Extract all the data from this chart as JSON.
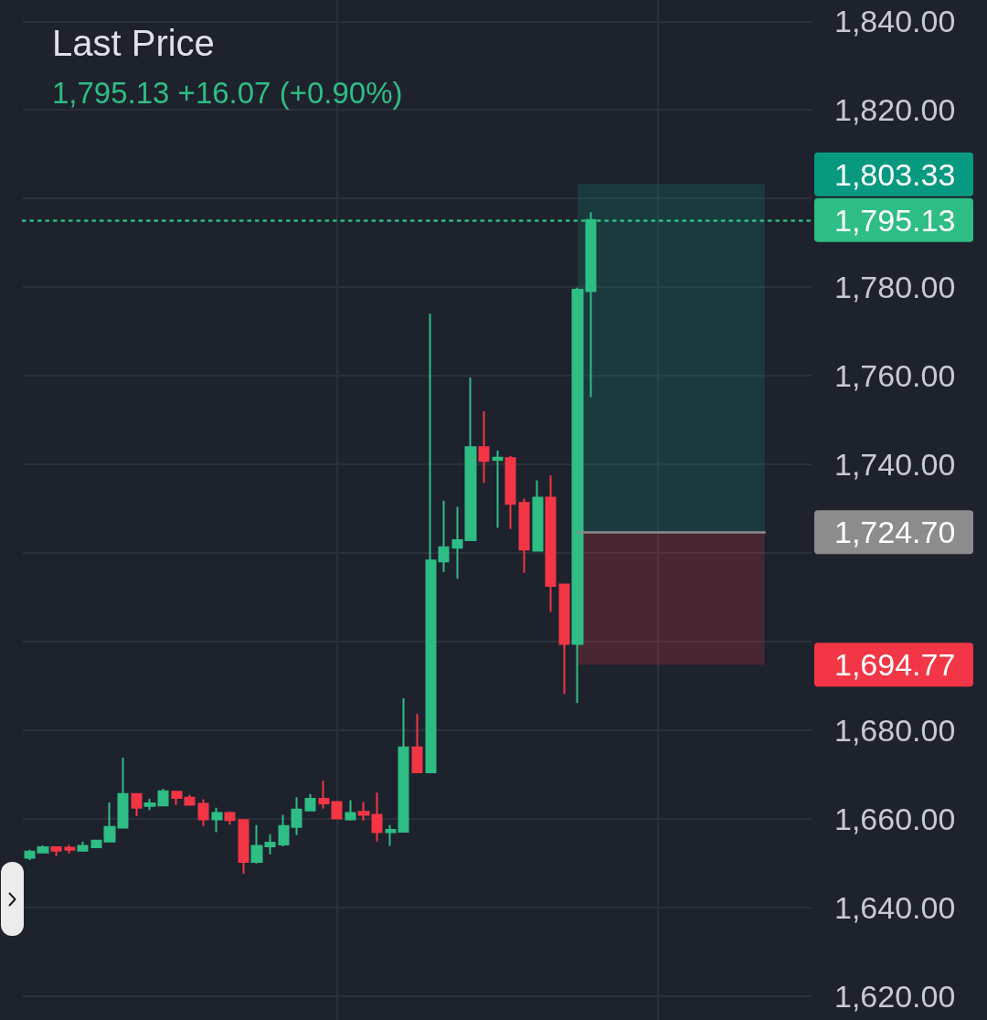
{
  "chart_data": {
    "type": "candlestick",
    "title": "Last Price",
    "subtitle": "1,795.13 +16.07 (+0.90%)",
    "categories": [
      null,
      null,
      null,
      null,
      null,
      null,
      null,
      null,
      null,
      null,
      null,
      null,
      null,
      null,
      null,
      null,
      null,
      null,
      null,
      null,
      null,
      null,
      null,
      null,
      null,
      null,
      null,
      null,
      null,
      null,
      null,
      null,
      null,
      null,
      null,
      null,
      null,
      null,
      null,
      null,
      null,
      null,
      null,
      null,
      null,
      null,
      null,
      null,
      null,
      null,
      null,
      null,
      null,
      null,
      null,
      null,
      null,
      null,
      null
    ],
    "ohlc": [
      [
        1651.2,
        1653.0,
        1650.7,
        1652.6
      ],
      [
        1652.4,
        1654.0,
        1652.3,
        1653.6
      ],
      [
        1653.6,
        1653.7,
        1651.6,
        1652.8
      ],
      [
        1653.5,
        1654.1,
        1652.2,
        1653.0
      ],
      [
        1652.8,
        1654.8,
        1652.7,
        1653.9
      ],
      [
        1653.6,
        1655.3,
        1653.4,
        1655.1
      ],
      [
        1654.9,
        1663.7,
        1654.8,
        1658.2
      ],
      [
        1658.0,
        1673.8,
        1657.9,
        1665.6
      ],
      [
        1665.6,
        1665.8,
        1660.6,
        1662.5
      ],
      [
        1662.9,
        1664.5,
        1662.0,
        1663.5
      ],
      [
        1663.0,
        1666.8,
        1662.8,
        1666.2
      ],
      [
        1666.1,
        1666.3,
        1663.2,
        1664.7
      ],
      [
        1664.8,
        1665.4,
        1663.1,
        1663.2
      ],
      [
        1663.4,
        1664.4,
        1658.4,
        1659.9
      ],
      [
        1659.9,
        1662.5,
        1657.0,
        1661.3
      ],
      [
        1661.3,
        1661.7,
        1658.7,
        1659.7
      ],
      [
        1659.7,
        1659.8,
        1647.6,
        1650.3
      ],
      [
        1650.3,
        1658.6,
        1649.9,
        1653.9
      ],
      [
        1653.8,
        1656.5,
        1652.0,
        1654.6
      ],
      [
        1654.2,
        1660.9,
        1653.8,
        1658.4
      ],
      [
        1658.2,
        1664.9,
        1656.3,
        1662.1
      ],
      [
        1661.9,
        1665.6,
        1661.8,
        1664.5
      ],
      [
        1664.5,
        1668.6,
        1662.3,
        1663.5
      ],
      [
        1663.8,
        1664.0,
        1660.0,
        1660.1
      ],
      [
        1659.9,
        1664.2,
        1659.6,
        1661.3
      ],
      [
        1661.6,
        1663.8,
        1659.6,
        1660.9
      ],
      [
        1660.9,
        1665.9,
        1654.9,
        1657.0
      ],
      [
        1657.0,
        1658.6,
        1653.9,
        1657.5
      ],
      [
        1657.1,
        1687.2,
        1657.0,
        1676.1
      ],
      [
        1676.1,
        1683.7,
        1670.5,
        1670.5
      ],
      [
        1670.5,
        1774.0,
        1670.4,
        1718.3
      ],
      [
        1718.1,
        1731.8,
        1715.7,
        1721.3
      ],
      [
        1721.2,
        1730.4,
        1714.2,
        1722.9
      ],
      [
        1722.9,
        1759.6,
        1722.8,
        1743.9
      ],
      [
        1743.9,
        1752.0,
        1735.8,
        1740.8
      ],
      [
        1741.0,
        1743.1,
        1725.7,
        1741.5
      ],
      [
        1741.4,
        1741.9,
        1725.4,
        1731.1
      ],
      [
        1731.3,
        1732.3,
        1715.5,
        1720.8
      ],
      [
        1720.5,
        1736.4,
        1720.4,
        1732.5
      ],
      [
        1732.5,
        1737.5,
        1706.7,
        1712.6
      ],
      [
        1712.9,
        1713.0,
        1688.2,
        1699.5
      ],
      [
        1699.5,
        1779.9,
        1686.1,
        1779.4
      ],
      [
        1779.1,
        1796.9,
        1755.2,
        1795.13
      ],
      null,
      null,
      null,
      null,
      null,
      null,
      null,
      null,
      null,
      null,
      null,
      null,
      null,
      null,
      null,
      null
    ],
    "colors": [
      "#2ebd85",
      "#2ebd85",
      "#f23645",
      "#f23645",
      "#2ebd85",
      "#2ebd85",
      "#2ebd85",
      "#2ebd85",
      "#f23645",
      "#2ebd85",
      "#2ebd85",
      "#f23645",
      "#f23645",
      "#f23645",
      "#2ebd85",
      "#f23645",
      "#f23645",
      "#2ebd85",
      "#2ebd85",
      "#2ebd85",
      "#2ebd85",
      "#2ebd85",
      "#f23645",
      "#f23645",
      "#2ebd85",
      "#f23645",
      "#f23645",
      "#2ebd85",
      "#2ebd85",
      "#f23645",
      "#2ebd85",
      "#2ebd85",
      "#2ebd85",
      "#2ebd85",
      "#f23645",
      "#2ebd85",
      "#f23645",
      "#f23645",
      "#2ebd85",
      "#f23645",
      "#f23645",
      "#2ebd85",
      "#2ebd85",
      null,
      null,
      null,
      null,
      null,
      null,
      null,
      null,
      null,
      null,
      null,
      null,
      null,
      null,
      null,
      null
    ],
    "ylim": [
      1614.6,
      1844.8
    ],
    "yticks": [
      {
        "value": 1620,
        "label": "1,620.00"
      },
      {
        "value": 1640,
        "label": "1,640.00"
      },
      {
        "value": 1660,
        "label": "1,660.00"
      },
      {
        "value": 1680,
        "label": "1,680.00"
      },
      {
        "value": 1700,
        "label": null
      },
      {
        "value": 1720,
        "label": null
      },
      {
        "value": 1740,
        "label": "1,740.00"
      },
      {
        "value": 1760,
        "label": "1,760.00"
      },
      {
        "value": 1780,
        "label": "1,780.00"
      },
      {
        "value": 1800,
        "label": null
      },
      {
        "value": 1820,
        "label": "1,820.00"
      },
      {
        "value": 1840,
        "label": "1,840.00"
      }
    ],
    "grid": true,
    "tick_labels": "y",
    "ref_lines": [
      {
        "axis": "y",
        "value": 1795.13,
        "label": "1,795.13",
        "color": "#2ebd85",
        "line_style": "dotted"
      },
      {
        "axis": "y",
        "value": 1724.7,
        "label": "1,724.70",
        "color": "#8c8c8c",
        "line_style": "solid"
      }
    ],
    "bands": [
      {
        "axis": "y",
        "from": 1724.7,
        "to": 1803.33,
        "label": "1,803.33",
        "color": "#089981"
      },
      {
        "axis": "y",
        "from": 1724.7,
        "to": 1694.77,
        "label": "1,694.77",
        "color": "#f23645"
      }
    ]
  }
}
